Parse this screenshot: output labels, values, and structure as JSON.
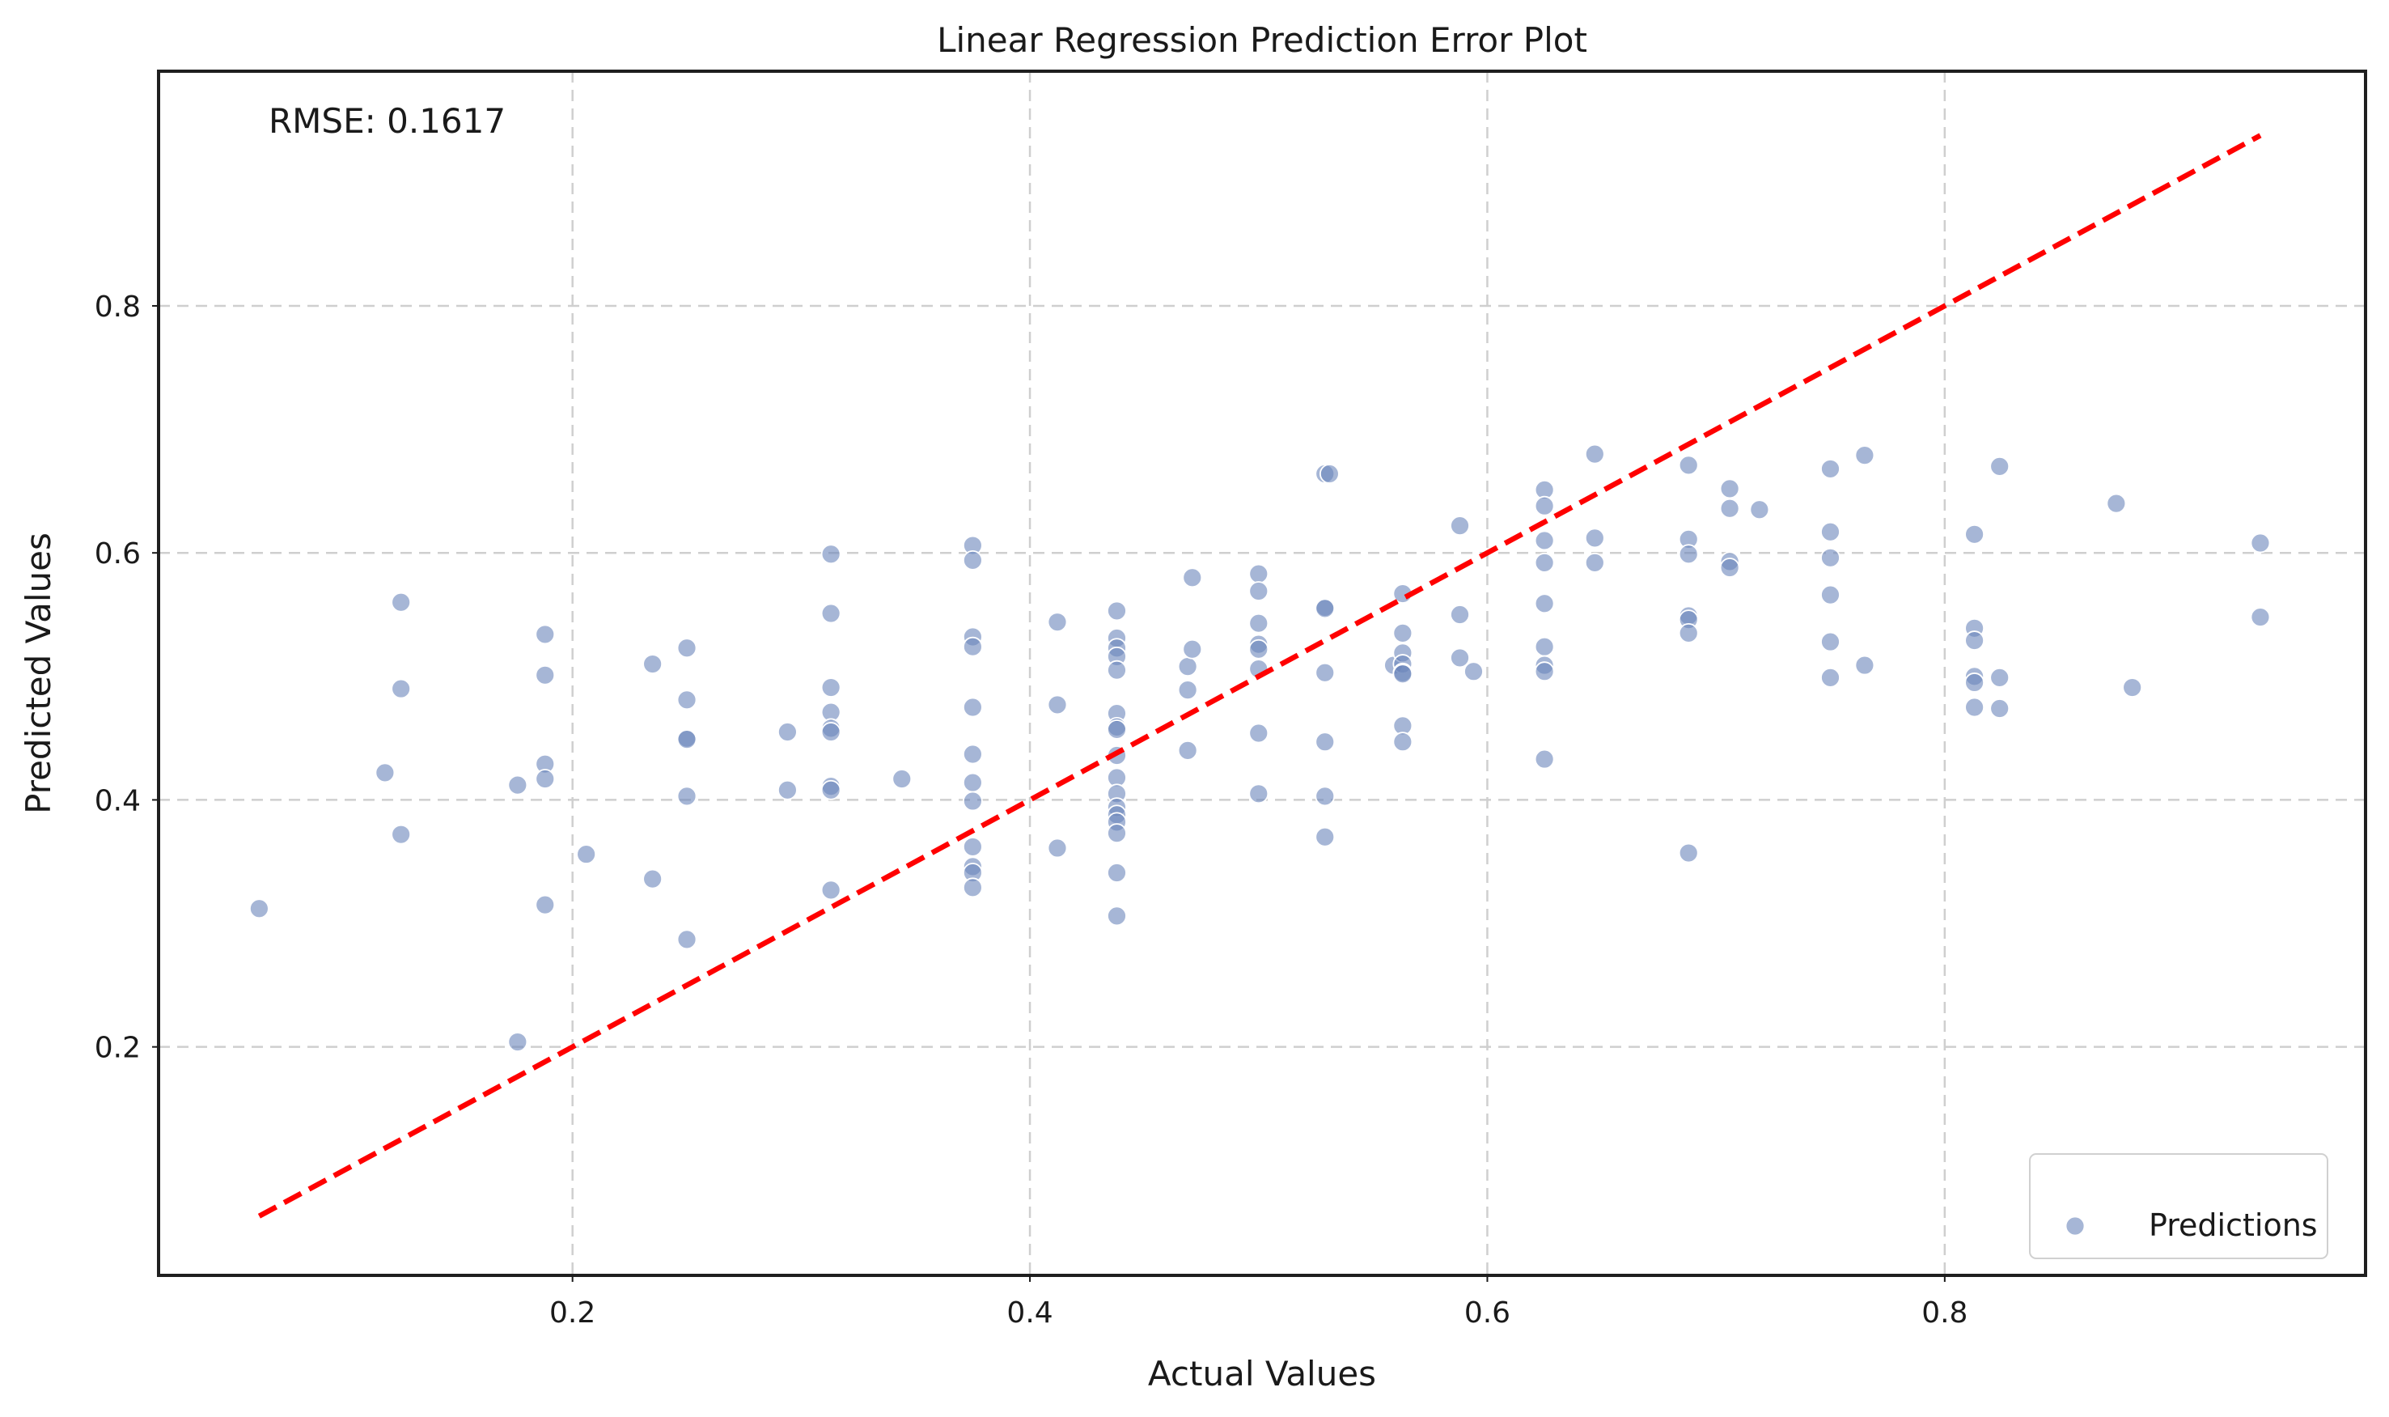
{
  "chart_data": {
    "type": "scatter",
    "title": "Linear Regression Prediction Error Plot",
    "xlabel": "Actual Values",
    "ylabel": "Predicted Values",
    "xlim": [
      0.019,
      0.984
    ],
    "ylim": [
      0.015,
      0.99
    ],
    "x_ticks": [
      0.2,
      0.4,
      0.6,
      0.8
    ],
    "y_ticks": [
      0.2,
      0.4,
      0.6,
      0.8
    ],
    "x_tick_labels": [
      "0.2",
      "0.4",
      "0.6",
      "0.8"
    ],
    "y_tick_labels": [
      "0.2",
      "0.4",
      "0.6",
      "0.8"
    ],
    "grid": true,
    "legend_position": "bottom-right",
    "annotation": "RMSE: 0.1617",
    "colors": {
      "points": "#6a86bb",
      "reference_line": "#ff0000"
    },
    "series": [
      {
        "name": "Predictions",
        "type": "scatter",
        "points": [
          [
            0.063,
            0.312
          ],
          [
            0.118,
            0.422
          ],
          [
            0.125,
            0.56
          ],
          [
            0.125,
            0.49
          ],
          [
            0.125,
            0.372
          ],
          [
            0.176,
            0.412
          ],
          [
            0.176,
            0.204
          ],
          [
            0.188,
            0.534
          ],
          [
            0.188,
            0.501
          ],
          [
            0.188,
            0.429
          ],
          [
            0.188,
            0.417
          ],
          [
            0.188,
            0.315
          ],
          [
            0.206,
            0.356
          ],
          [
            0.235,
            0.51
          ],
          [
            0.235,
            0.336
          ],
          [
            0.25,
            0.523
          ],
          [
            0.25,
            0.481
          ],
          [
            0.25,
            0.45
          ],
          [
            0.25,
            0.449
          ],
          [
            0.25,
            0.403
          ],
          [
            0.25,
            0.287
          ],
          [
            0.294,
            0.455
          ],
          [
            0.294,
            0.408
          ],
          [
            0.313,
            0.599
          ],
          [
            0.313,
            0.551
          ],
          [
            0.313,
            0.491
          ],
          [
            0.313,
            0.471
          ],
          [
            0.313,
            0.458
          ],
          [
            0.313,
            0.455
          ],
          [
            0.313,
            0.411
          ],
          [
            0.313,
            0.408
          ],
          [
            0.313,
            0.327
          ],
          [
            0.344,
            0.417
          ],
          [
            0.375,
            0.606
          ],
          [
            0.375,
            0.594
          ],
          [
            0.375,
            0.532
          ],
          [
            0.375,
            0.524
          ],
          [
            0.375,
            0.475
          ],
          [
            0.375,
            0.437
          ],
          [
            0.375,
            0.414
          ],
          [
            0.375,
            0.399
          ],
          [
            0.375,
            0.362
          ],
          [
            0.375,
            0.346
          ],
          [
            0.375,
            0.341
          ],
          [
            0.375,
            0.329
          ],
          [
            0.412,
            0.544
          ],
          [
            0.412,
            0.477
          ],
          [
            0.412,
            0.361
          ],
          [
            0.438,
            0.553
          ],
          [
            0.438,
            0.531
          ],
          [
            0.438,
            0.523
          ],
          [
            0.438,
            0.516
          ],
          [
            0.438,
            0.505
          ],
          [
            0.438,
            0.47
          ],
          [
            0.438,
            0.459
          ],
          [
            0.438,
            0.457
          ],
          [
            0.438,
            0.436
          ],
          [
            0.438,
            0.418
          ],
          [
            0.438,
            0.405
          ],
          [
            0.438,
            0.394
          ],
          [
            0.438,
            0.388
          ],
          [
            0.438,
            0.382
          ],
          [
            0.438,
            0.373
          ],
          [
            0.438,
            0.341
          ],
          [
            0.438,
            0.306
          ],
          [
            0.469,
            0.508
          ],
          [
            0.469,
            0.489
          ],
          [
            0.469,
            0.44
          ],
          [
            0.471,
            0.58
          ],
          [
            0.471,
            0.522
          ],
          [
            0.5,
            0.583
          ],
          [
            0.5,
            0.569
          ],
          [
            0.5,
            0.543
          ],
          [
            0.5,
            0.526
          ],
          [
            0.5,
            0.522
          ],
          [
            0.5,
            0.506
          ],
          [
            0.5,
            0.454
          ],
          [
            0.5,
            0.405
          ],
          [
            0.529,
            0.664
          ],
          [
            0.531,
            0.664
          ],
          [
            0.529,
            0.556
          ],
          [
            0.529,
            0.555
          ],
          [
            0.529,
            0.503
          ],
          [
            0.529,
            0.447
          ],
          [
            0.529,
            0.403
          ],
          [
            0.529,
            0.37
          ],
          [
            0.559,
            0.509
          ],
          [
            0.563,
            0.567
          ],
          [
            0.563,
            0.535
          ],
          [
            0.563,
            0.519
          ],
          [
            0.563,
            0.51
          ],
          [
            0.563,
            0.503
          ],
          [
            0.563,
            0.502
          ],
          [
            0.563,
            0.46
          ],
          [
            0.563,
            0.447
          ],
          [
            0.588,
            0.622
          ],
          [
            0.588,
            0.55
          ],
          [
            0.588,
            0.515
          ],
          [
            0.594,
            0.504
          ],
          [
            0.625,
            0.651
          ],
          [
            0.625,
            0.638
          ],
          [
            0.625,
            0.61
          ],
          [
            0.625,
            0.592
          ],
          [
            0.625,
            0.559
          ],
          [
            0.625,
            0.524
          ],
          [
            0.625,
            0.509
          ],
          [
            0.625,
            0.504
          ],
          [
            0.625,
            0.433
          ],
          [
            0.647,
            0.68
          ],
          [
            0.647,
            0.612
          ],
          [
            0.647,
            0.592
          ],
          [
            0.688,
            0.671
          ],
          [
            0.688,
            0.611
          ],
          [
            0.688,
            0.599
          ],
          [
            0.688,
            0.549
          ],
          [
            0.688,
            0.546
          ],
          [
            0.688,
            0.535
          ],
          [
            0.688,
            0.357
          ],
          [
            0.706,
            0.652
          ],
          [
            0.706,
            0.636
          ],
          [
            0.706,
            0.593
          ],
          [
            0.706,
            0.588
          ],
          [
            0.719,
            0.635
          ],
          [
            0.75,
            0.668
          ],
          [
            0.75,
            0.617
          ],
          [
            0.75,
            0.596
          ],
          [
            0.75,
            0.566
          ],
          [
            0.75,
            0.528
          ],
          [
            0.75,
            0.499
          ],
          [
            0.765,
            0.679
          ],
          [
            0.765,
            0.509
          ],
          [
            0.813,
            0.615
          ],
          [
            0.813,
            0.539
          ],
          [
            0.813,
            0.529
          ],
          [
            0.813,
            0.5
          ],
          [
            0.813,
            0.495
          ],
          [
            0.813,
            0.475
          ],
          [
            0.824,
            0.67
          ],
          [
            0.824,
            0.499
          ],
          [
            0.824,
            0.474
          ],
          [
            0.875,
            0.64
          ],
          [
            0.882,
            0.491
          ],
          [
            0.938,
            0.608
          ],
          [
            0.938,
            0.548
          ]
        ]
      },
      {
        "type": "line",
        "style": "dashed",
        "points": [
          [
            0.063,
            0.063
          ],
          [
            0.938,
            0.938
          ]
        ]
      }
    ]
  }
}
